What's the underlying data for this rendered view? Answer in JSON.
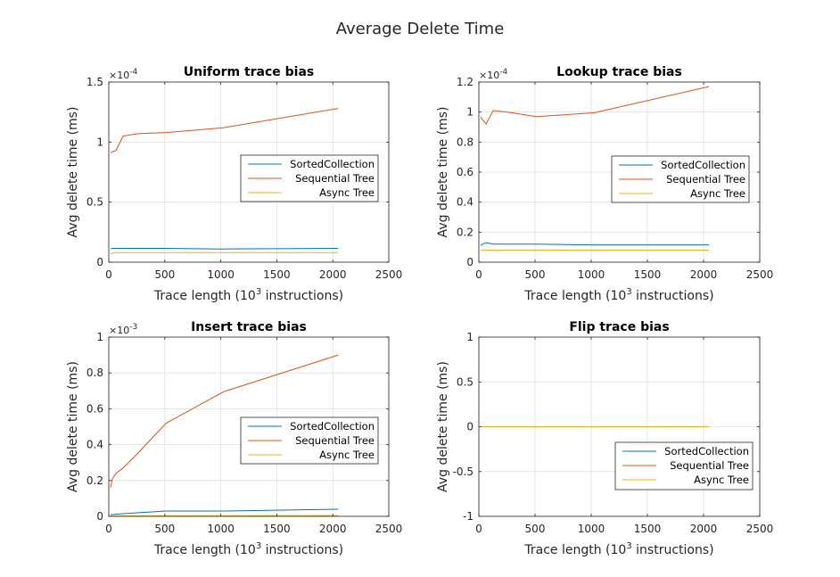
{
  "figure": {
    "title": "Average Delete Time"
  },
  "chart_data": [
    {
      "type": "line",
      "title": "Uniform trace bias",
      "xlabel": "Trace length (10",
      "xlabel_sup": "3",
      "xlabel_suffix": " instructions)",
      "ylabel": "Avg delete time (ms)",
      "exponent_base": "×10",
      "exponent_power": "-4",
      "xlim": [
        0,
        2500
      ],
      "ylim": [
        0,
        1.5
      ],
      "xticks": [
        "0",
        "500",
        "1000",
        "1500",
        "2000",
        "2500"
      ],
      "xtick_values": [
        0,
        500,
        1000,
        1500,
        2000,
        2500
      ],
      "yticks": [
        "0",
        "0.5",
        "1",
        "1.5"
      ],
      "ytick_values": [
        0,
        0.5,
        1,
        1.5
      ],
      "grid": true,
      "legend_placement": "middle-right",
      "series": [
        {
          "name": "SortedCollection",
          "color": "#0072BD",
          "x": [
            16,
            32,
            64,
            128,
            256,
            512,
            1024,
            2048
          ],
          "y": [
            0.11,
            0.115,
            0.115,
            0.115,
            0.115,
            0.115,
            0.11,
            0.115
          ]
        },
        {
          "name": "Sequential Tree",
          "color": "#D95319",
          "x": [
            16,
            32,
            64,
            128,
            256,
            512,
            1024,
            2048
          ],
          "y": [
            0.91,
            0.92,
            0.93,
            1.05,
            1.07,
            1.08,
            1.12,
            1.28
          ]
        },
        {
          "name": "Async Tree",
          "color": "#EDB120",
          "x": [
            16,
            32,
            64,
            128,
            256,
            512,
            1024,
            2048
          ],
          "y": [
            0.07,
            0.075,
            0.08,
            0.08,
            0.08,
            0.08,
            0.08,
            0.08
          ]
        }
      ]
    },
    {
      "type": "line",
      "title": "Lookup trace bias",
      "xlabel": "Trace length (10",
      "xlabel_sup": "3",
      "xlabel_suffix": " instructions)",
      "ylabel": "Avg delete time (ms)",
      "exponent_base": "×10",
      "exponent_power": "-4",
      "xlim": [
        0,
        2500
      ],
      "ylim": [
        0,
        1.2
      ],
      "xticks": [
        "0",
        "500",
        "1000",
        "1500",
        "2000",
        "2500"
      ],
      "xtick_values": [
        0,
        500,
        1000,
        1500,
        2000,
        2500
      ],
      "yticks": [
        "0",
        "0.2",
        "0.4",
        "0.6",
        "0.8",
        "1",
        "1.2"
      ],
      "ytick_values": [
        0,
        0.2,
        0.4,
        0.6,
        0.8,
        1,
        1.2
      ],
      "grid": true,
      "legend_placement": "middle-right",
      "series": [
        {
          "name": "SortedCollection",
          "color": "#0072BD",
          "x": [
            16,
            32,
            64,
            128,
            256,
            512,
            1024,
            2048
          ],
          "y": [
            0.11,
            0.12,
            0.13,
            0.12,
            0.12,
            0.12,
            0.115,
            0.115
          ]
        },
        {
          "name": "Sequential Tree",
          "color": "#D95319",
          "x": [
            16,
            32,
            64,
            128,
            256,
            512,
            1024,
            2048
          ],
          "y": [
            0.97,
            0.95,
            0.92,
            1.01,
            1.0,
            0.97,
            0.995,
            1.17
          ]
        },
        {
          "name": "Async Tree",
          "color": "#EDB120",
          "x": [
            16,
            32,
            64,
            128,
            256,
            512,
            1024,
            2048
          ],
          "y": [
            0.08,
            0.08,
            0.08,
            0.08,
            0.08,
            0.08,
            0.08,
            0.08
          ]
        }
      ]
    },
    {
      "type": "line",
      "title": "Insert trace bias",
      "xlabel": "Trace length (10",
      "xlabel_sup": "3",
      "xlabel_suffix": " instructions)",
      "ylabel": "Avg delete time (ms)",
      "exponent_base": "×10",
      "exponent_power": "-3",
      "xlim": [
        0,
        2500
      ],
      "ylim": [
        0,
        1
      ],
      "xticks": [
        "0",
        "500",
        "1000",
        "1500",
        "2000",
        "2500"
      ],
      "xtick_values": [
        0,
        500,
        1000,
        1500,
        2000,
        2500
      ],
      "yticks": [
        "0",
        "0.2",
        "0.4",
        "0.6",
        "0.8",
        "1"
      ],
      "ytick_values": [
        0,
        0.2,
        0.4,
        0.6,
        0.8,
        1
      ],
      "grid": true,
      "legend_placement": "middle-right",
      "series": [
        {
          "name": "SortedCollection",
          "color": "#0072BD",
          "x": [
            16,
            32,
            64,
            128,
            256,
            512,
            1024,
            2048
          ],
          "y": [
            0.01,
            0.01,
            0.012,
            0.015,
            0.02,
            0.03,
            0.03,
            0.04
          ]
        },
        {
          "name": "Sequential Tree",
          "color": "#D95319",
          "x": [
            16,
            32,
            64,
            128,
            256,
            512,
            1024,
            2048
          ],
          "y": [
            0.16,
            0.21,
            0.24,
            0.27,
            0.35,
            0.52,
            0.695,
            0.9
          ]
        },
        {
          "name": "Async Tree",
          "color": "#EDB120",
          "x": [
            16,
            32,
            64,
            128,
            256,
            512,
            1024,
            2048
          ],
          "y": [
            0.002,
            0.002,
            0.002,
            0.003,
            0.003,
            0.004,
            0.004,
            0.005
          ]
        }
      ]
    },
    {
      "type": "line",
      "title": "Flip trace bias",
      "xlabel": "Trace length (10",
      "xlabel_sup": "3",
      "xlabel_suffix": " instructions)",
      "ylabel": "Avg delete time (ms)",
      "exponent_base": "",
      "exponent_power": "",
      "xlim": [
        0,
        2500
      ],
      "ylim": [
        -1,
        1
      ],
      "xticks": [
        "0",
        "500",
        "1000",
        "1500",
        "2000",
        "2500"
      ],
      "xtick_values": [
        0,
        500,
        1000,
        1500,
        2000,
        2500
      ],
      "yticks": [
        "-1",
        "-0.5",
        "0",
        "0.5",
        "1"
      ],
      "ytick_values": [
        -1,
        -0.5,
        0,
        0.5,
        1
      ],
      "grid": true,
      "legend_placement": "bottom-right",
      "series": [
        {
          "name": "SortedCollection",
          "color": "#0072BD",
          "x": [
            16,
            32,
            64,
            128,
            256,
            512,
            1024,
            2048
          ],
          "y": [
            0,
            0,
            0,
            0,
            0,
            0,
            0,
            0
          ]
        },
        {
          "name": "Sequential Tree",
          "color": "#D95319",
          "x": [
            16,
            32,
            64,
            128,
            256,
            512,
            1024,
            2048
          ],
          "y": [
            0,
            0,
            0,
            0,
            0,
            0,
            0,
            0
          ]
        },
        {
          "name": "Async Tree",
          "color": "#EDB120",
          "x": [
            16,
            32,
            64,
            128,
            256,
            512,
            1024,
            2048
          ],
          "y": [
            0,
            0,
            0,
            0,
            0,
            0,
            0,
            0
          ]
        }
      ]
    }
  ]
}
